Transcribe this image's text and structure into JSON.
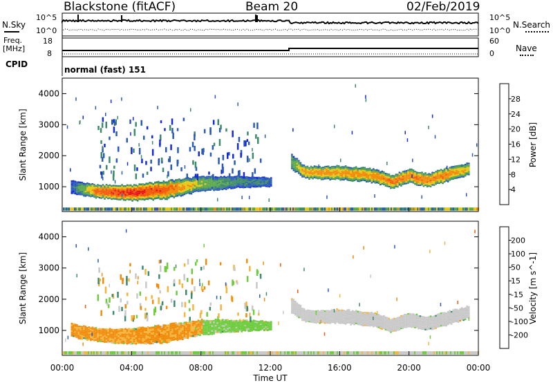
{
  "header": {
    "station": "Blackstone (fitACF)",
    "beam": "Beam 20",
    "date": "02/Feb/2019"
  },
  "strip_labels": {
    "nsky": "N.Sky",
    "nsearch": "N.Search",
    "freq": "Freq.",
    "freq_unit": "[MHz]",
    "nave": "Nave",
    "cpid": "CPID",
    "cpid_value": "normal (fast) 151"
  },
  "strip_ticks": {
    "noise_top": "10^5",
    "noise_bottom": "10^0",
    "freq_top": "18",
    "freq_bottom": "8",
    "nave_top": "60",
    "nave_bottom": "0"
  },
  "colors": {
    "power": [
      "#1428dc",
      "#2a5ab8",
      "#3c8a6a",
      "#5aa84a",
      "#e6c814",
      "#f08c0a",
      "#f05a0a",
      "#e61414"
    ],
    "velocity": [
      "#e61414",
      "#f05a0a",
      "#f08c0a",
      "#f5b43c",
      "#c8c8c8",
      "#6ccc3c",
      "#3c8a6a",
      "#2a5ab8",
      "#1428dc"
    ]
  },
  "chart_data": [
    {
      "type": "heatmap",
      "panel": "power",
      "ylabel": "Slant Range [km]",
      "xlabel": "Time UT",
      "x_ticks": [
        "00:00",
        "04:00",
        "08:00",
        "12:00",
        "16:00",
        "20:00",
        "00:00"
      ],
      "y_ticks": [
        "1000",
        "2000",
        "3000",
        "4000"
      ],
      "ylim": [
        200,
        4500
      ],
      "colorbar_label": "Power [dB]",
      "colorbar_ticks": [
        "4",
        "8",
        "12",
        "16",
        "20",
        "24",
        "28"
      ],
      "colorbar_range": [
        0,
        32
      ],
      "bands": [
        {
          "name": "main echo",
          "t": [
            0.5,
            2,
            4,
            6,
            8,
            10,
            12
          ],
          "center": [
            1000,
            850,
            800,
            900,
            1100,
            1150,
            1150
          ],
          "half": [
            220,
            220,
            260,
            300,
            250,
            200,
            150
          ],
          "power": [
            6,
            26,
            30,
            26,
            16,
            10,
            8
          ]
        },
        {
          "name": "evening echo",
          "t": [
            13.2,
            14,
            16,
            18,
            19,
            20,
            21,
            22,
            23.5
          ],
          "center": [
            1800,
            1450,
            1450,
            1350,
            1150,
            1350,
            1200,
            1350,
            1600
          ],
          "half": [
            250,
            200,
            230,
            230,
            220,
            230,
            220,
            230,
            200
          ],
          "power": [
            14,
            22,
            22,
            22,
            24,
            24,
            24,
            24,
            18
          ]
        }
      ]
    },
    {
      "type": "heatmap",
      "panel": "velocity",
      "ylabel": "Slant Range [km]",
      "xlabel": "Time UT",
      "x_ticks": [
        "00:00",
        "04:00",
        "08:00",
        "12:00",
        "16:00",
        "20:00",
        "00:00"
      ],
      "y_ticks": [
        "1000",
        "2000",
        "3000",
        "4000"
      ],
      "ylim": [
        200,
        4500
      ],
      "colorbar_label": "Velocity [m s^-1]",
      "colorbar_ticks": [
        "200",
        "100",
        "50",
        "15",
        "-15",
        "-50",
        "-100",
        "-200"
      ],
      "colorbar_range": [
        -250,
        250
      ],
      "velocity_summary": {
        "main_echo_0_to_8UT": -60,
        "main_echo_8_to_12UT": 30,
        "evening_echo_13_to_24UT": 0
      }
    }
  ]
}
